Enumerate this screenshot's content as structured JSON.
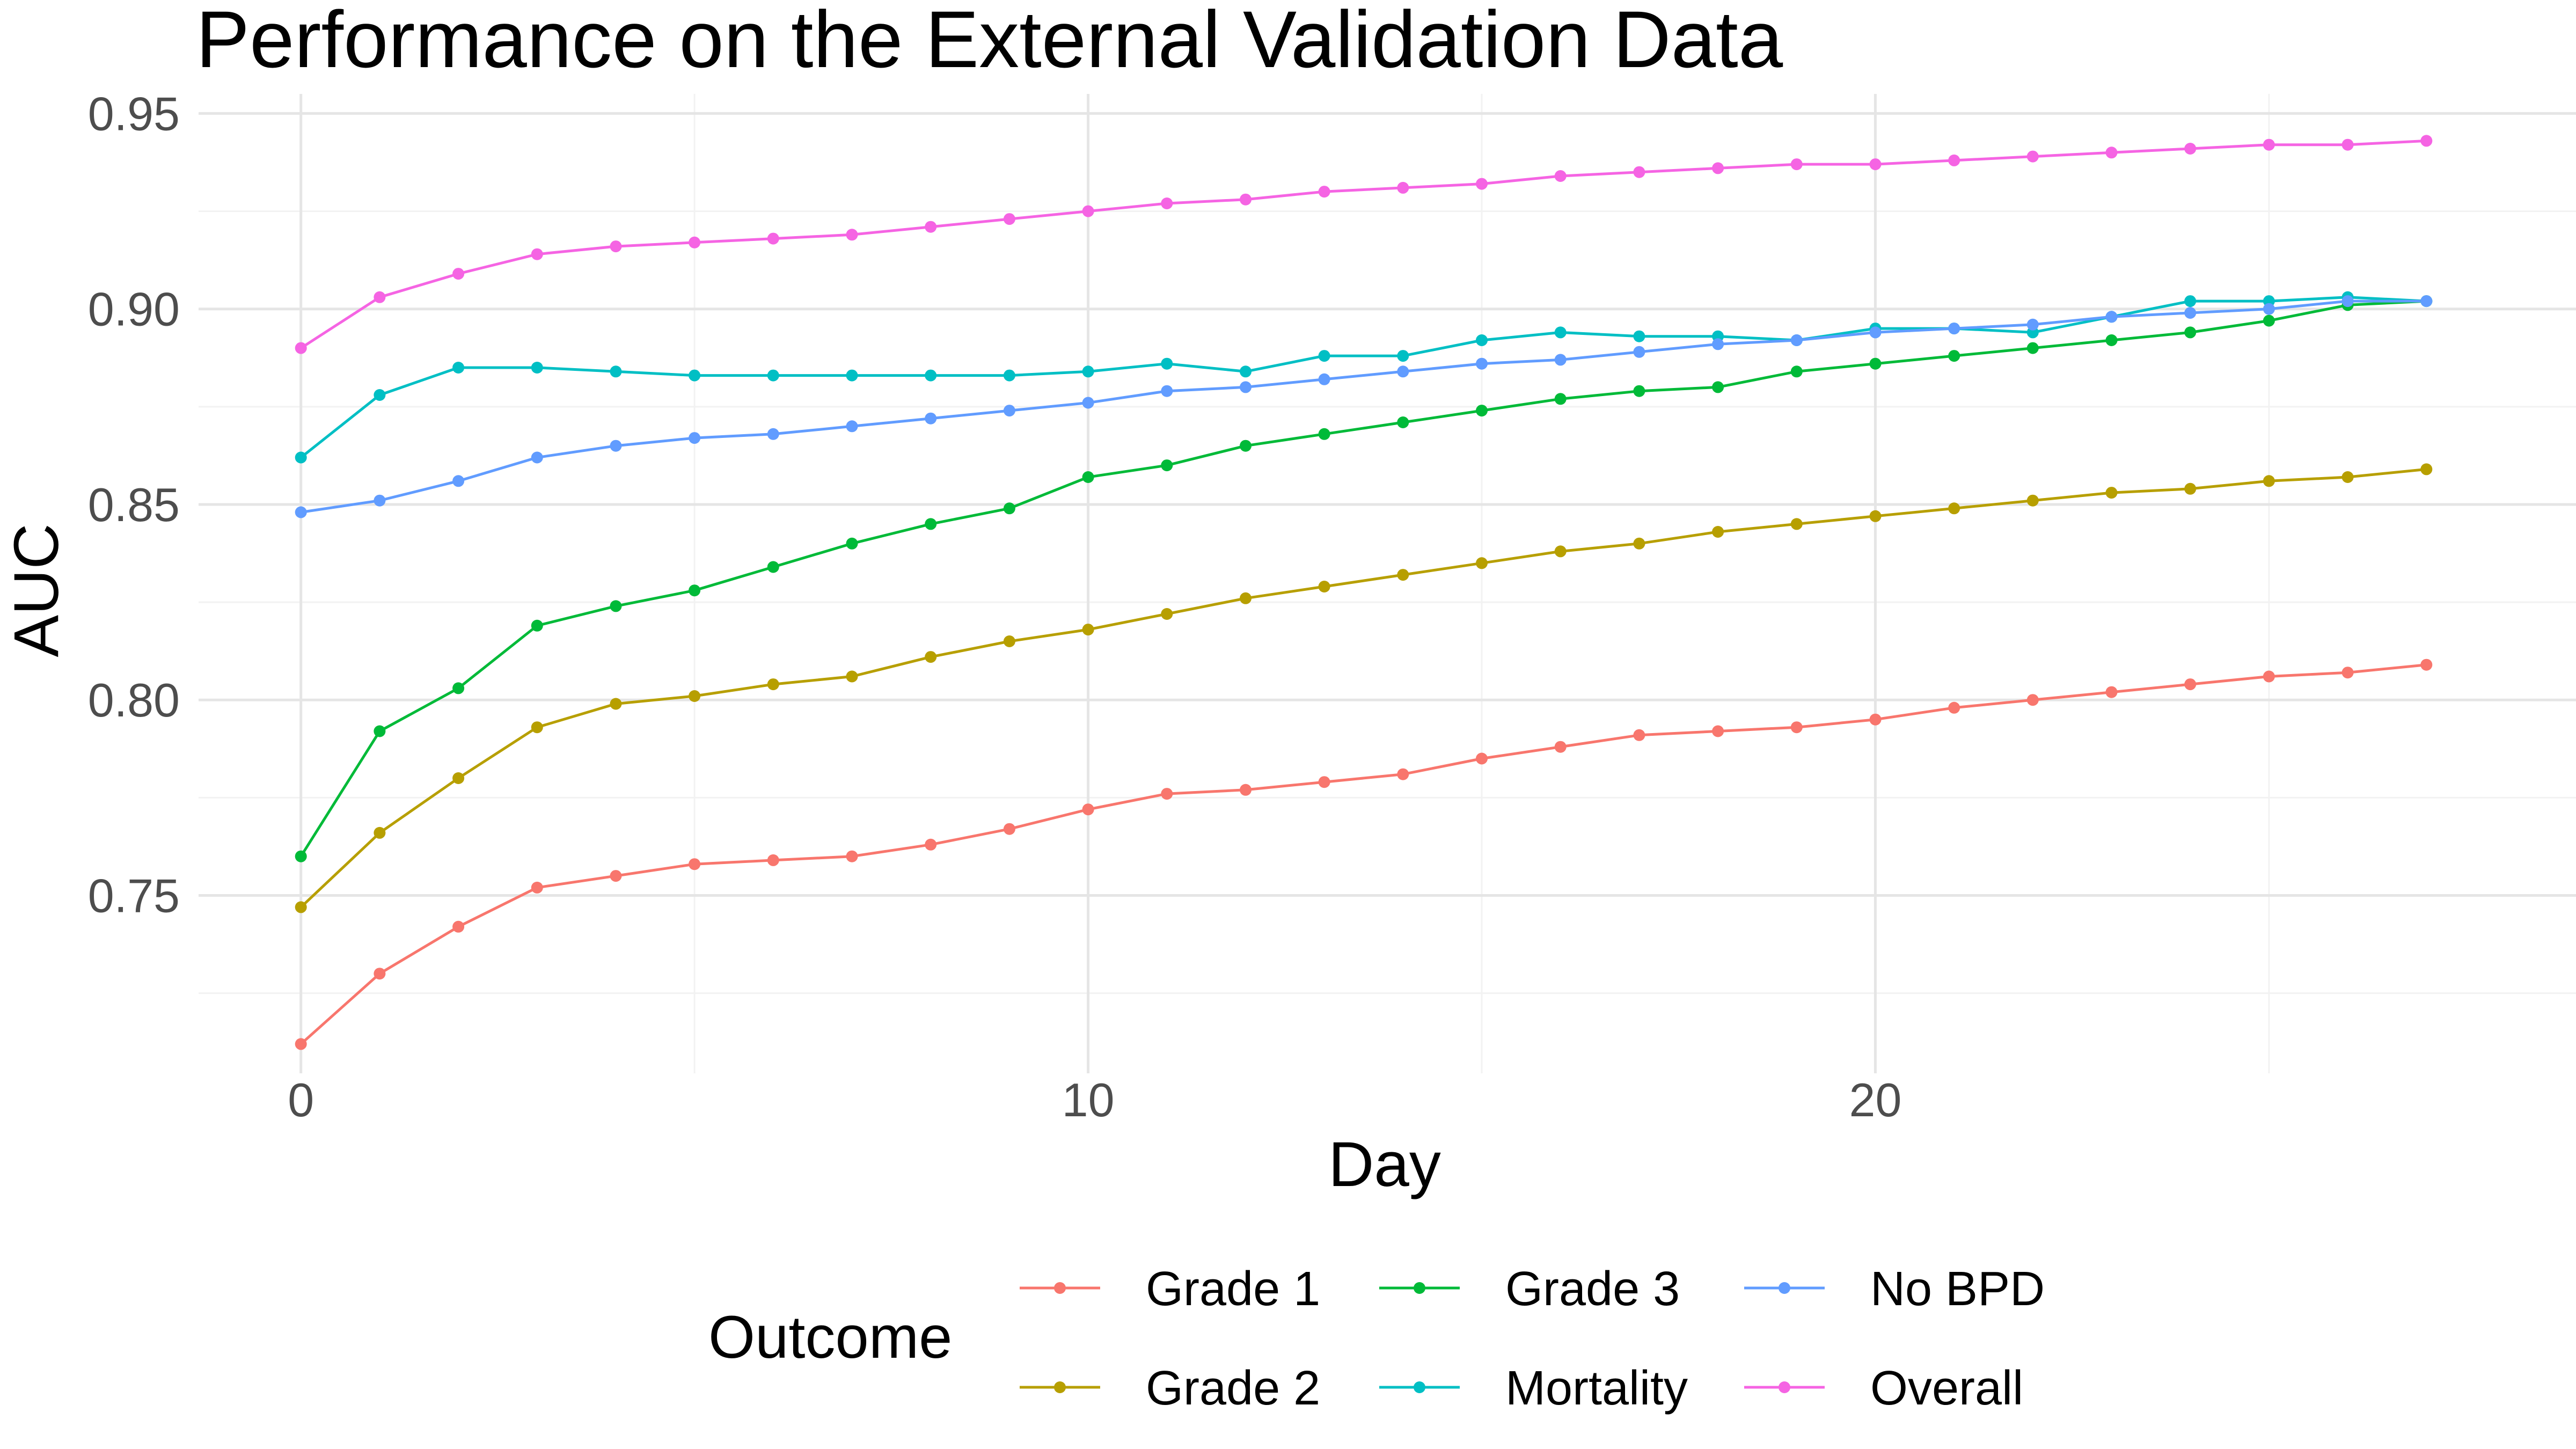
{
  "chart_data": {
    "type": "line",
    "title": "Performance on the External Validation Data",
    "xlabel": "Day",
    "ylabel": "AUC",
    "xlim": [
      -1.3,
      28.9
    ],
    "ylim": [
      0.7045,
      0.955
    ],
    "xticks": [
      0,
      10,
      20
    ],
    "xtick_labels": [
      "0",
      "10",
      "20"
    ],
    "xminor": [
      5,
      15,
      25
    ],
    "yticks": [
      0.75,
      0.8,
      0.85,
      0.9,
      0.95
    ],
    "ytick_labels": [
      "0.75",
      "0.80",
      "0.85",
      "0.90",
      "0.95"
    ],
    "yminor": [
      0.725,
      0.775,
      0.825,
      0.875,
      0.925
    ],
    "grid": true,
    "legend_placement": "bottom",
    "legend": {
      "title": "Outcome"
    },
    "x": [
      0,
      1,
      2,
      3,
      4,
      5,
      6,
      7,
      8,
      9,
      10,
      11,
      12,
      13,
      14,
      15,
      16,
      17,
      18,
      19,
      20,
      21,
      22,
      23,
      24,
      25,
      26,
      27
    ],
    "series": [
      {
        "name": "Grade 1",
        "color": "#F8766D",
        "values": [
          0.712,
          0.73,
          0.742,
          0.752,
          0.755,
          0.758,
          0.759,
          0.76,
          0.763,
          0.767,
          0.772,
          0.776,
          0.777,
          0.779,
          0.781,
          0.785,
          0.788,
          0.791,
          0.792,
          0.793,
          0.795,
          0.798,
          0.8,
          0.802,
          0.804,
          0.806,
          0.807,
          0.809
        ]
      },
      {
        "name": "Grade 2",
        "color": "#B79F00",
        "values": [
          0.747,
          0.766,
          0.78,
          0.793,
          0.799,
          0.801,
          0.804,
          0.806,
          0.811,
          0.815,
          0.818,
          0.822,
          0.826,
          0.829,
          0.832,
          0.835,
          0.838,
          0.84,
          0.843,
          0.845,
          0.847,
          0.849,
          0.851,
          0.853,
          0.854,
          0.856,
          0.857,
          0.859
        ]
      },
      {
        "name": "Grade 3",
        "color": "#00BA38",
        "values": [
          0.76,
          0.792,
          0.803,
          0.819,
          0.824,
          0.828,
          0.834,
          0.84,
          0.845,
          0.849,
          0.857,
          0.86,
          0.865,
          0.868,
          0.871,
          0.874,
          0.877,
          0.879,
          0.88,
          0.884,
          0.886,
          0.888,
          0.89,
          0.892,
          0.894,
          0.897,
          0.901,
          0.902
        ]
      },
      {
        "name": "Mortality",
        "color": "#00BFC4",
        "values": [
          0.862,
          0.878,
          0.885,
          0.885,
          0.884,
          0.883,
          0.883,
          0.883,
          0.883,
          0.883,
          0.884,
          0.886,
          0.884,
          0.888,
          0.888,
          0.892,
          0.894,
          0.893,
          0.893,
          0.892,
          0.895,
          0.895,
          0.894,
          0.898,
          0.902,
          0.902,
          0.903,
          0.902
        ]
      },
      {
        "name": "No BPD",
        "color": "#619CFF",
        "values": [
          0.848,
          0.851,
          0.856,
          0.862,
          0.865,
          0.867,
          0.868,
          0.87,
          0.872,
          0.874,
          0.876,
          0.879,
          0.88,
          0.882,
          0.884,
          0.886,
          0.887,
          0.889,
          0.891,
          0.892,
          0.894,
          0.895,
          0.896,
          0.898,
          0.899,
          0.9,
          0.902,
          0.902
        ]
      },
      {
        "name": "Overall",
        "color": "#F564E3",
        "values": [
          0.89,
          0.903,
          0.909,
          0.914,
          0.916,
          0.917,
          0.918,
          0.919,
          0.921,
          0.923,
          0.925,
          0.927,
          0.928,
          0.93,
          0.931,
          0.932,
          0.934,
          0.935,
          0.936,
          0.937,
          0.937,
          0.938,
          0.939,
          0.94,
          0.941,
          0.942,
          0.942,
          0.943
        ]
      }
    ]
  }
}
